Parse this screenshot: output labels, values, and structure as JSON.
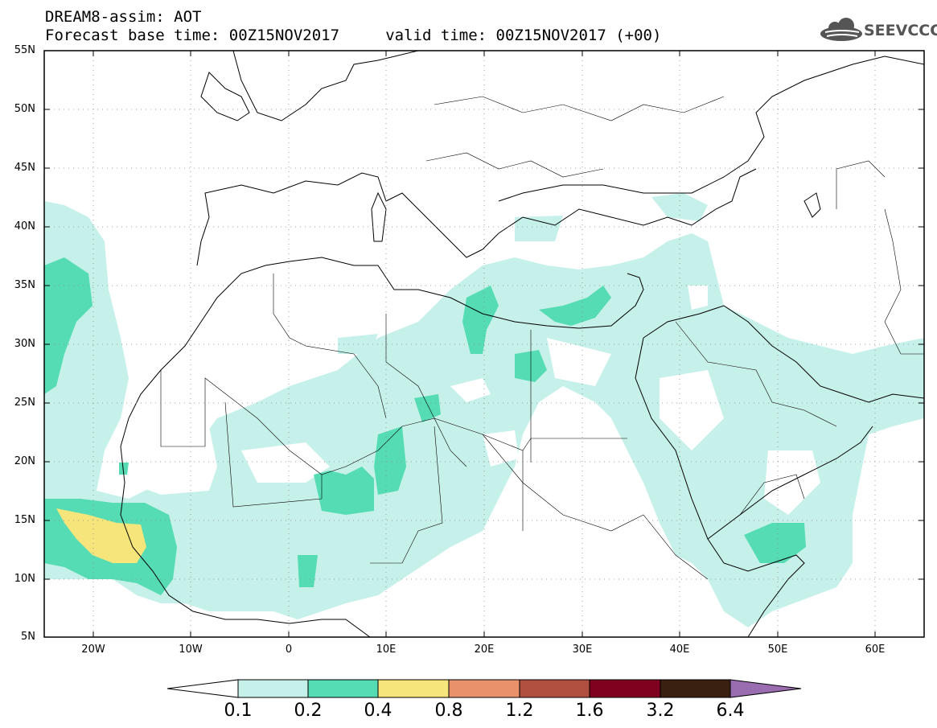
{
  "header": {
    "line1": "DREAM8-assim: AOT",
    "line2": "Forecast base time: 00Z15NOV2017     valid time: 00Z15NOV2017 (+00)"
  },
  "logo": {
    "text": "SEEVCCC",
    "icon": "cloud-icon",
    "color": "#555555"
  },
  "axes": {
    "lat_labels": [
      "55N",
      "50N",
      "45N",
      "40N",
      "35N",
      "30N",
      "25N",
      "20N",
      "15N",
      "10N",
      "5N"
    ],
    "lon_labels": [
      "20W",
      "10W",
      "0",
      "10E",
      "20E",
      "30E",
      "40E",
      "50E",
      "60E"
    ],
    "lat_range": [
      5,
      55
    ],
    "lon_range": [
      -25,
      65
    ],
    "grid": "dotted"
  },
  "legend": {
    "labels": [
      "0.1",
      "0.2",
      "0.4",
      "0.8",
      "1.2",
      "1.6",
      "3.2",
      "6.4"
    ],
    "colors": [
      "#c6f0ea",
      "#55dcb4",
      "#f5e57a",
      "#e8916b",
      "#b05040",
      "#800020",
      "#3a2010",
      "#9a6cb0"
    ]
  },
  "fields": {
    "level1_color": "#c6f0ea",
    "level2_color": "#55dcb4",
    "level3_color": "#f5e57a"
  }
}
